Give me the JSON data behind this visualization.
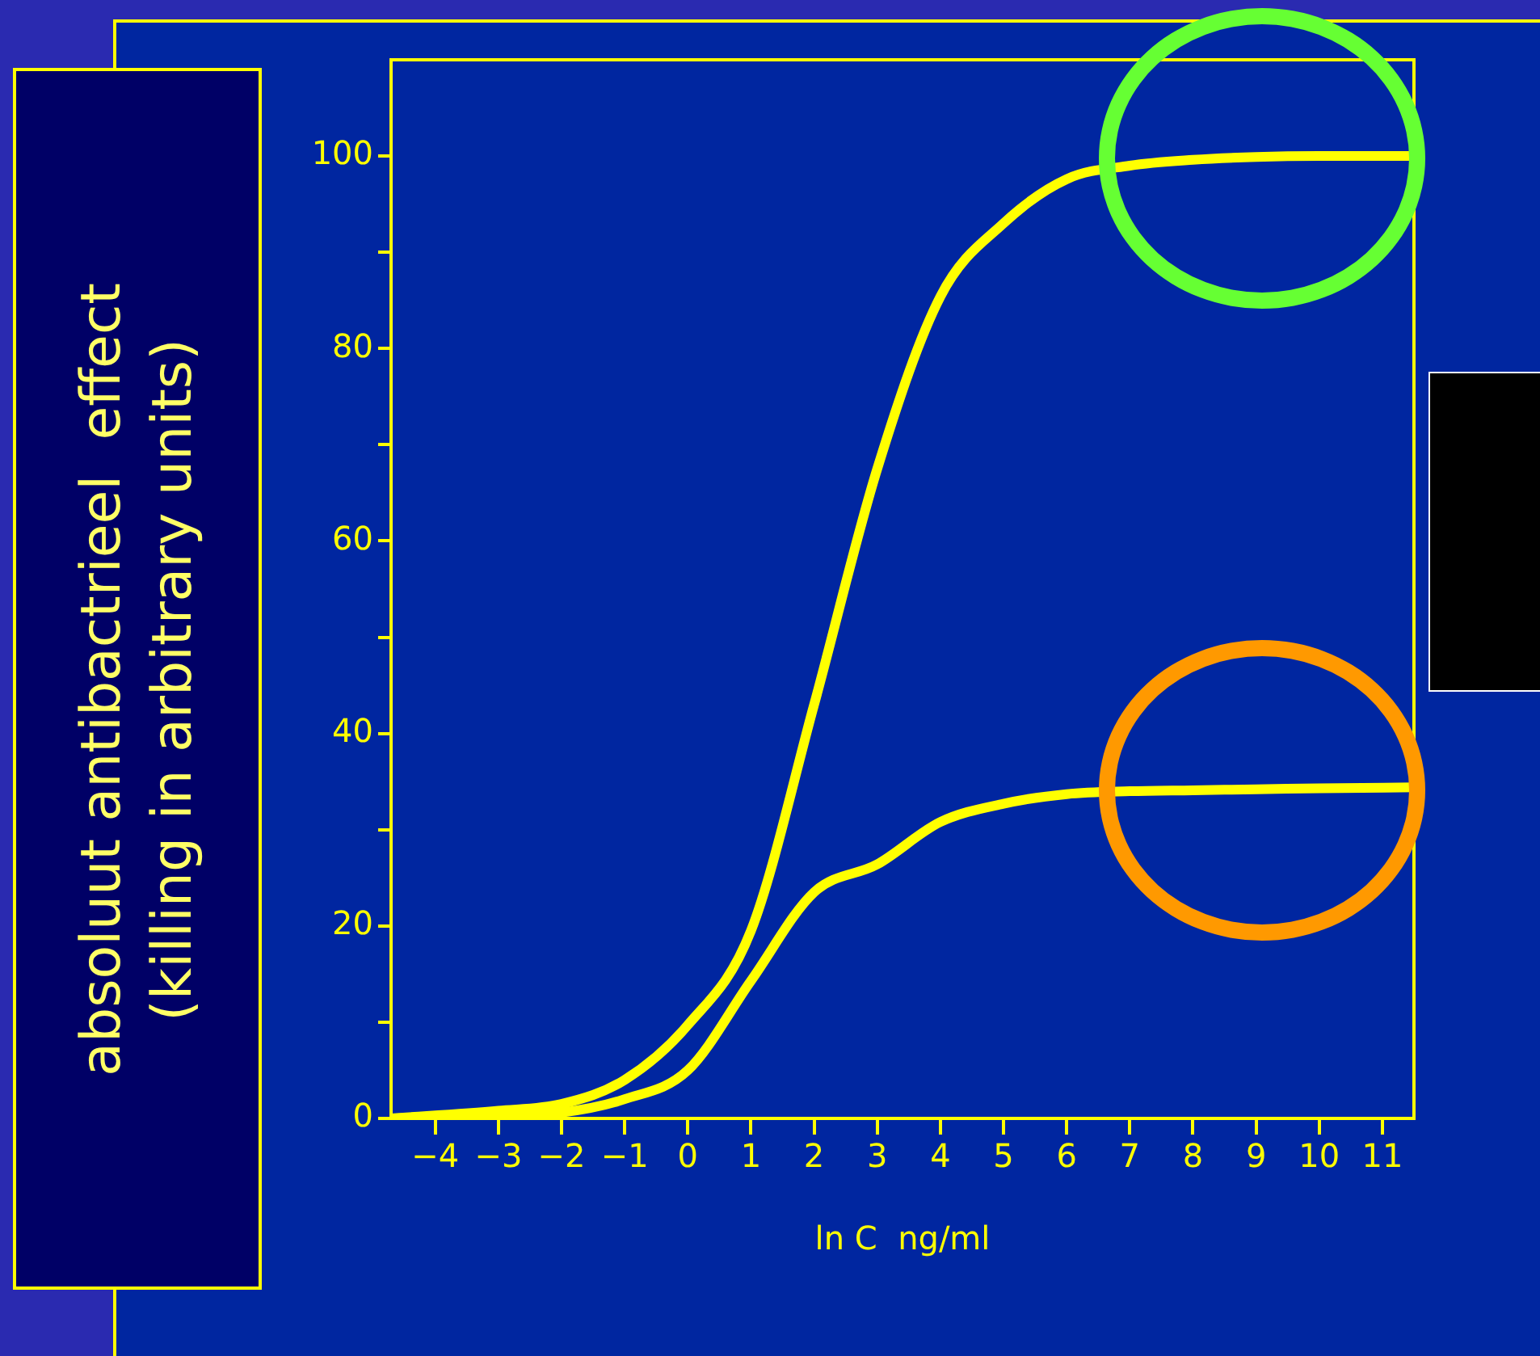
{
  "chart_data": {
    "type": "line",
    "xlabel": "ln C  ng/ml",
    "ylabel": "absoluut antibactrieel  effect\n(killing in arbitrary units)",
    "x": [
      -4.7,
      -3,
      -2,
      -1,
      0,
      1,
      2,
      3,
      4,
      5,
      6,
      7,
      8,
      9,
      10,
      11.5
    ],
    "series": [
      {
        "color": "#ffff00",
        "values": [
          0,
          0.8,
          1.5,
          4,
          9.7,
          19.5,
          43,
          67.5,
          85.4,
          93,
          97.6,
          99,
          99.6,
          99.9,
          100,
          100
        ]
      },
      {
        "color": "#ffff00",
        "values": [
          0,
          0.3,
          0.6,
          2,
          5,
          14.3,
          23.5,
          26.4,
          30.8,
          32.7,
          33.7,
          34,
          34.1,
          34.2,
          34.3,
          34.4
        ]
      }
    ],
    "xlim": [
      -4.7,
      11.5
    ],
    "xticks": [
      -4,
      -3,
      -2,
      -1,
      0,
      1,
      2,
      3,
      4,
      5,
      6,
      7,
      8,
      9,
      10,
      11
    ],
    "ylim": [
      0,
      110
    ],
    "yticks": [
      0,
      {
        "value": 10,
        "label": null
      },
      20,
      {
        "value": 30,
        "label": null
      },
      40,
      {
        "value": 50,
        "label": null
      },
      60,
      {
        "value": 70,
        "label": null
      },
      80,
      {
        "value": 90,
        "label": null
      },
      100
    ],
    "grid": false,
    "legend": false,
    "marker": "none",
    "line_style": "solid"
  }
}
